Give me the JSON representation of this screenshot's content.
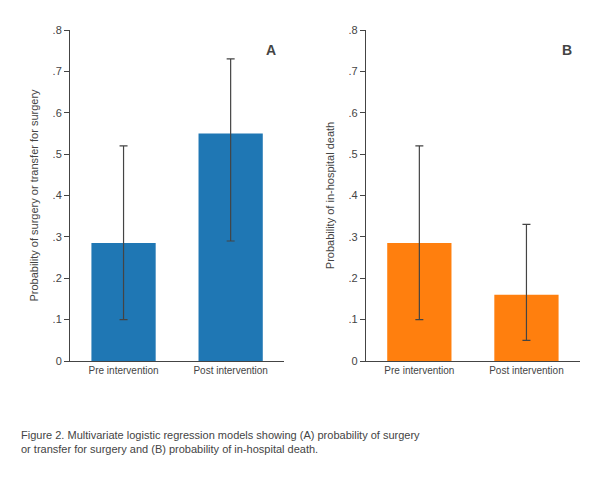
{
  "chart_data": [
    {
      "type": "bar",
      "categories": [
        "Pre intervention",
        "Post intervention"
      ],
      "values": [
        0.285,
        0.55
      ],
      "err_lower": [
        0.185,
        0.26
      ],
      "err_upper": [
        0.235,
        0.18
      ],
      "ylabel": "Probability of surgery or transfer for surgery",
      "ylim": [
        0,
        0.8
      ],
      "yticks": [
        0,
        {
          "value": 0.1,
          "label": ".1"
        },
        {
          "value": 0.2,
          "label": ".2"
        },
        {
          "value": 0.3,
          "label": ".3"
        },
        {
          "value": 0.4,
          "label": ".4"
        },
        {
          "value": 0.5,
          "label": ".5"
        },
        {
          "value": 0.6,
          "label": ".6"
        },
        {
          "value": 0.7,
          "label": ".7"
        },
        {
          "value": 0.8,
          "label": ".8"
        }
      ],
      "grid": false,
      "annotations": [
        "A"
      ]
    },
    {
      "type": "bar",
      "categories": [
        "Pre intervention",
        "Post intervention"
      ],
      "values": [
        0.285,
        0.16
      ],
      "err_lower": [
        0.185,
        0.11
      ],
      "err_upper": [
        0.235,
        0.17
      ],
      "ylabel": "Probability of in-hospital death",
      "ylim": [
        0,
        0.8
      ],
      "yticks": [
        0,
        {
          "value": 0.1,
          "label": ".1"
        },
        {
          "value": 0.2,
          "label": ".2"
        },
        {
          "value": 0.3,
          "label": ".3"
        },
        {
          "value": 0.4,
          "label": ".4"
        },
        {
          "value": 0.5,
          "label": ".5"
        },
        {
          "value": 0.6,
          "label": ".6"
        },
        {
          "value": 0.7,
          "label": ".7"
        },
        {
          "value": 0.8,
          "label": ".8"
        }
      ],
      "grid": false,
      "annotations": [
        "B"
      ]
    }
  ],
  "annotations": [
    "Figure 2. Multivariate logistic regression models showing (A) probability of surgery",
    "or transfer for surgery and (B) probability of in-hospital death."
  ]
}
